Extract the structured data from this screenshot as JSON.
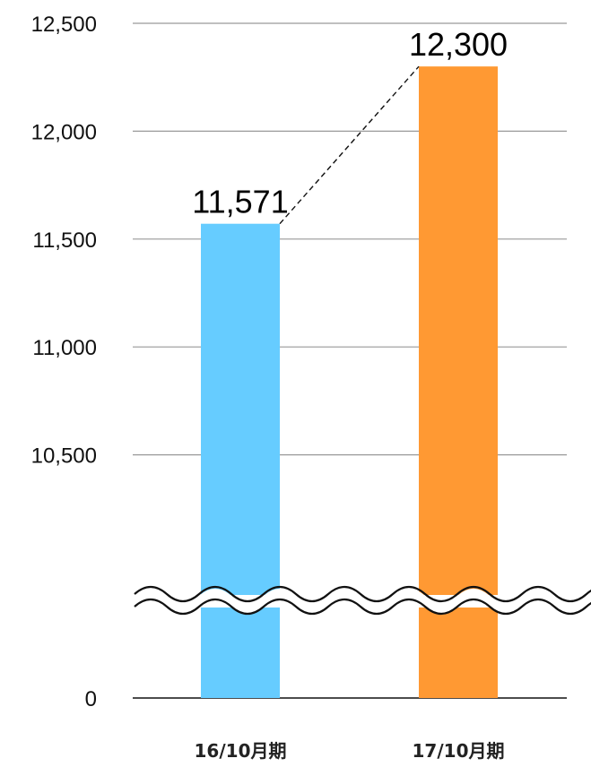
{
  "chart_data": {
    "type": "bar",
    "categories": [
      "16/10月期",
      "17/10月期"
    ],
    "values": [
      11571,
      12300
    ],
    "data_labels": [
      "11,571",
      "12,300"
    ],
    "colors": [
      "#66ccff",
      "#ff9933"
    ],
    "y_ticks": [
      {
        "value": 0,
        "label": "0"
      },
      {
        "value": 10500,
        "label": "10,500"
      },
      {
        "value": 11000,
        "label": "11,000"
      },
      {
        "value": 11500,
        "label": "11,500"
      },
      {
        "value": 12000,
        "label": "12,000"
      },
      {
        "value": 12500,
        "label": "12,500"
      }
    ],
    "ylim": [
      10000,
      12500
    ],
    "axis_break": true,
    "trend_connector": "dashed",
    "grid": true,
    "title": "",
    "xlabel": "",
    "ylabel": ""
  }
}
